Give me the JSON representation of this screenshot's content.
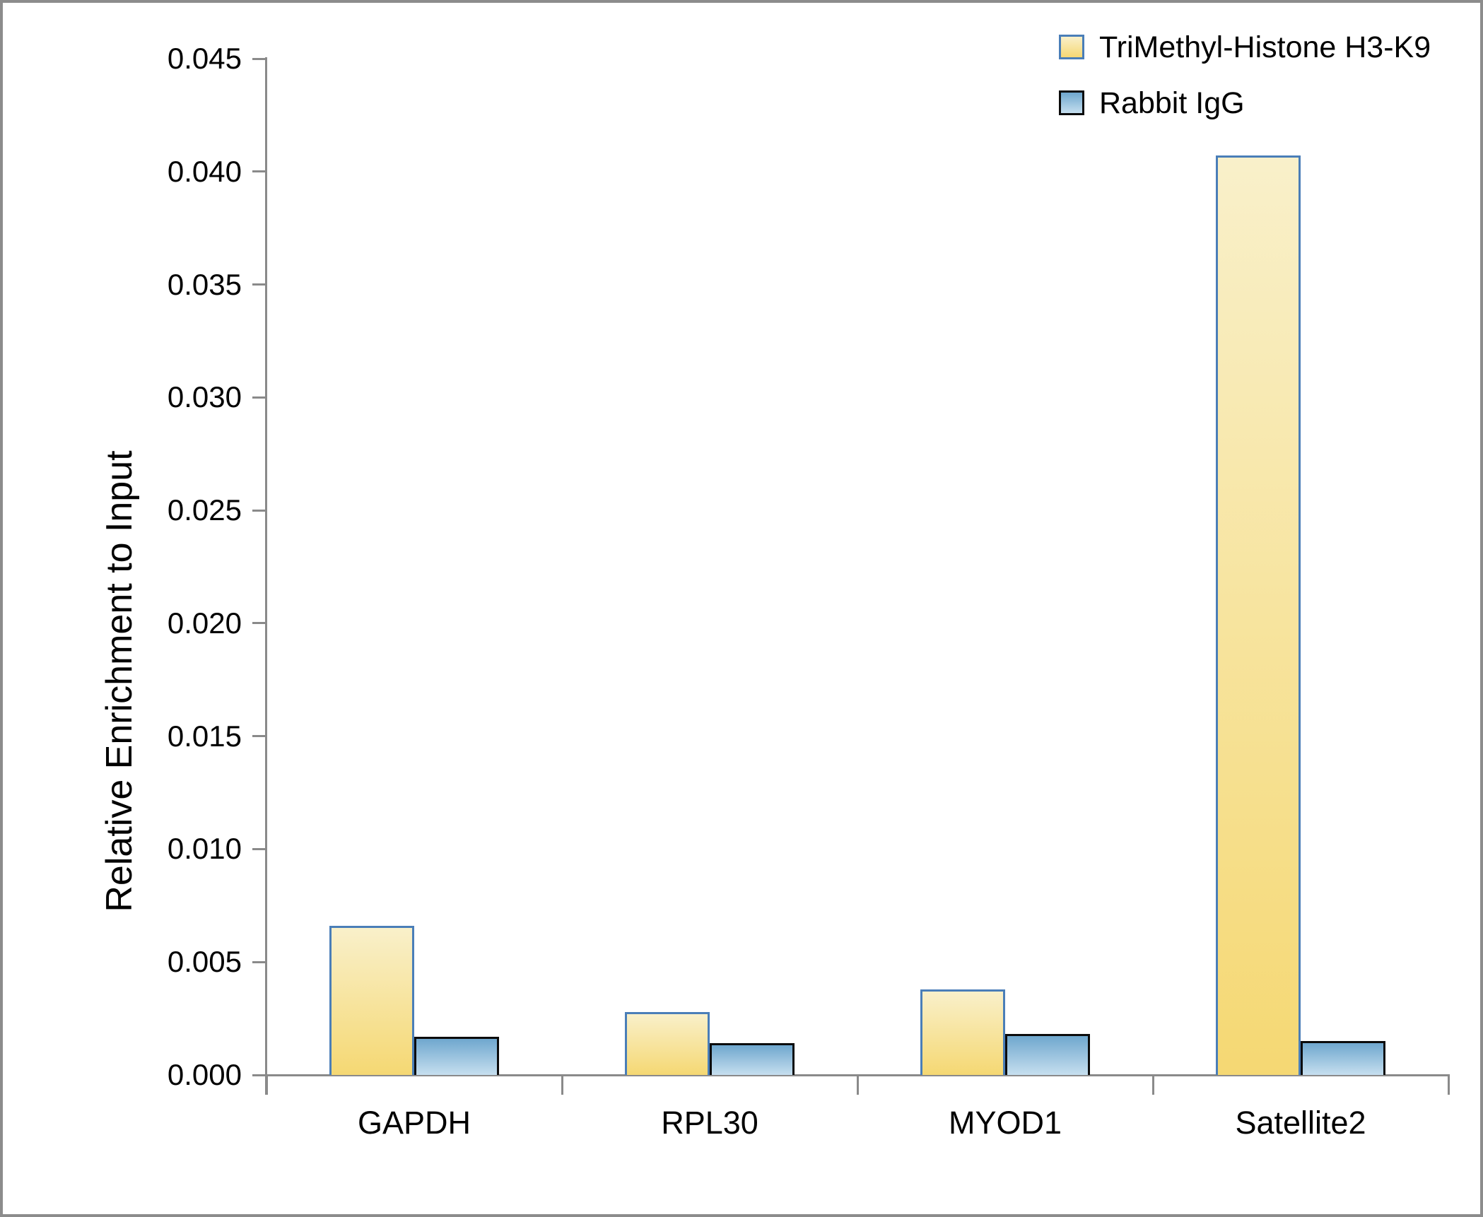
{
  "chart_data": {
    "type": "bar",
    "title": "",
    "categories": [
      "GAPDH",
      "RPL30",
      "MYOD1",
      "Satellite2"
    ],
    "series": [
      {
        "name": "TriMethyl-Histone H3-K9",
        "values": [
          0.0066,
          0.0028,
          0.0038,
          0.0407
        ],
        "fill_top": "#F9F0CA",
        "fill_bottom": "#F5D873",
        "border_color": "#4A7EB8"
      },
      {
        "name": "Rabbit IgG",
        "values": [
          0.0017,
          0.0014,
          0.0018,
          0.0015
        ],
        "fill_top": "#6FA7CE",
        "fill_bottom": "#C6DFEF",
        "border_color": "#0b0b0b"
      }
    ],
    "xlabel": "",
    "ylabel": "Relative Enrichment to Input",
    "ylim": [
      0,
      0.045
    ],
    "ytick_step": 0.005,
    "ytick_decimals": 3,
    "grid": "off",
    "legend_position": "top-right",
    "axis_color": "#8a8a8a",
    "text_color": "#000000"
  }
}
